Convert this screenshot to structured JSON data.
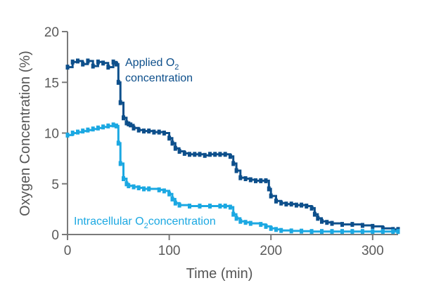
{
  "chart_data": {
    "type": "line",
    "xlabel": "Time (min)",
    "ylabel": "Oxygen Concentration (%)",
    "xlim": [
      0,
      325
    ],
    "ylim": [
      0,
      20
    ],
    "xticks": [
      0,
      100,
      200,
      300
    ],
    "yticks": [
      0,
      5,
      10,
      15,
      20
    ],
    "grid": false,
    "series": [
      {
        "key": "applied",
        "color": "#0d4f8b",
        "x": [
          0,
          5,
          10,
          15,
          20,
          25,
          30,
          35,
          40,
          45,
          48,
          50,
          52,
          55,
          58,
          60,
          62,
          65,
          70,
          75,
          80,
          85,
          90,
          95,
          100,
          103,
          106,
          110,
          115,
          120,
          125,
          130,
          135,
          140,
          145,
          150,
          155,
          160,
          163,
          166,
          170,
          175,
          180,
          185,
          190,
          195,
          198,
          200,
          205,
          210,
          215,
          220,
          225,
          230,
          235,
          240,
          243,
          246,
          250,
          255,
          260,
          270,
          280,
          290,
          300,
          310,
          320,
          325
        ],
        "y": [
          16.5,
          17.0,
          17.1,
          16.8,
          17.1,
          16.6,
          17.0,
          16.9,
          16.5,
          17.0,
          16.8,
          15.0,
          13.0,
          11.5,
          11.0,
          10.9,
          10.8,
          10.5,
          10.3,
          10.2,
          10.2,
          10.1,
          10.1,
          10.0,
          9.5,
          9.0,
          8.5,
          8.2,
          8.0,
          7.9,
          7.9,
          7.9,
          7.8,
          7.9,
          7.9,
          7.9,
          7.9,
          7.7,
          7.0,
          6.3,
          5.6,
          5.5,
          5.4,
          5.3,
          5.3,
          5.3,
          4.5,
          3.8,
          3.3,
          3.1,
          3.0,
          3.0,
          2.9,
          2.9,
          2.8,
          2.6,
          2.0,
          1.6,
          1.3,
          1.2,
          1.1,
          1.0,
          1.0,
          0.9,
          0.8,
          0.6,
          0.5,
          0.5
        ]
      },
      {
        "key": "intracellular",
        "color": "#1ba8e2",
        "x": [
          0,
          5,
          10,
          15,
          20,
          25,
          30,
          35,
          40,
          45,
          48,
          50,
          52,
          55,
          58,
          60,
          65,
          70,
          75,
          80,
          90,
          95,
          100,
          103,
          106,
          110,
          120,
          130,
          140,
          150,
          155,
          160,
          163,
          166,
          170,
          175,
          180,
          190,
          195,
          200,
          205,
          210,
          220,
          230,
          240,
          250,
          260,
          270,
          280,
          290,
          300,
          310,
          320,
          325
        ],
        "y": [
          9.8,
          10.0,
          10.1,
          10.2,
          10.3,
          10.4,
          10.5,
          10.6,
          10.7,
          10.8,
          10.7,
          9.0,
          7.0,
          5.5,
          5.0,
          4.8,
          4.7,
          4.6,
          4.5,
          4.5,
          4.4,
          4.3,
          4.0,
          3.5,
          3.1,
          2.9,
          2.8,
          2.8,
          2.8,
          2.8,
          2.8,
          2.7,
          2.0,
          1.6,
          1.3,
          1.2,
          1.1,
          1.0,
          0.8,
          0.6,
          0.5,
          0.4,
          0.35,
          0.33,
          0.3,
          0.3,
          0.3,
          0.3,
          0.3,
          0.3,
          0.3,
          0.3,
          0.3,
          0.3
        ]
      }
    ],
    "annotations": {
      "applied_line1": "Applied O",
      "applied_sub": "2",
      "applied_line2": "concentration",
      "intracellular_main": "Intracellular O",
      "intracellular_sub": "2",
      "intracellular_tail": "concentration"
    }
  }
}
